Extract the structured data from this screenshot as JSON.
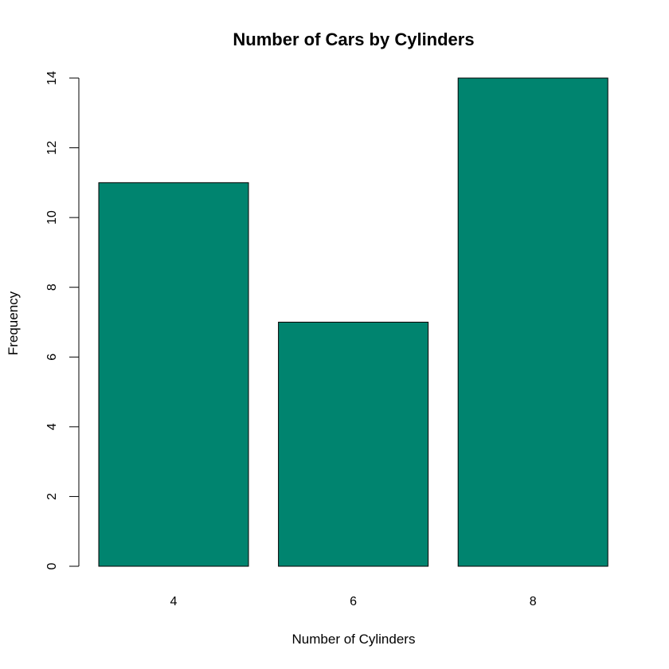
{
  "chart_data": {
    "type": "bar",
    "title": "Number of Cars by Cylinders",
    "xlabel": "Number of Cylinders",
    "ylabel": "Frequency",
    "categories": [
      "4",
      "6",
      "8"
    ],
    "values": [
      11,
      7,
      14
    ],
    "ylim": [
      0,
      14
    ],
    "yticks": [
      0,
      2,
      4,
      6,
      8,
      10,
      12,
      14
    ],
    "bar_color": "#00846F",
    "grid": false,
    "legend": "none"
  }
}
